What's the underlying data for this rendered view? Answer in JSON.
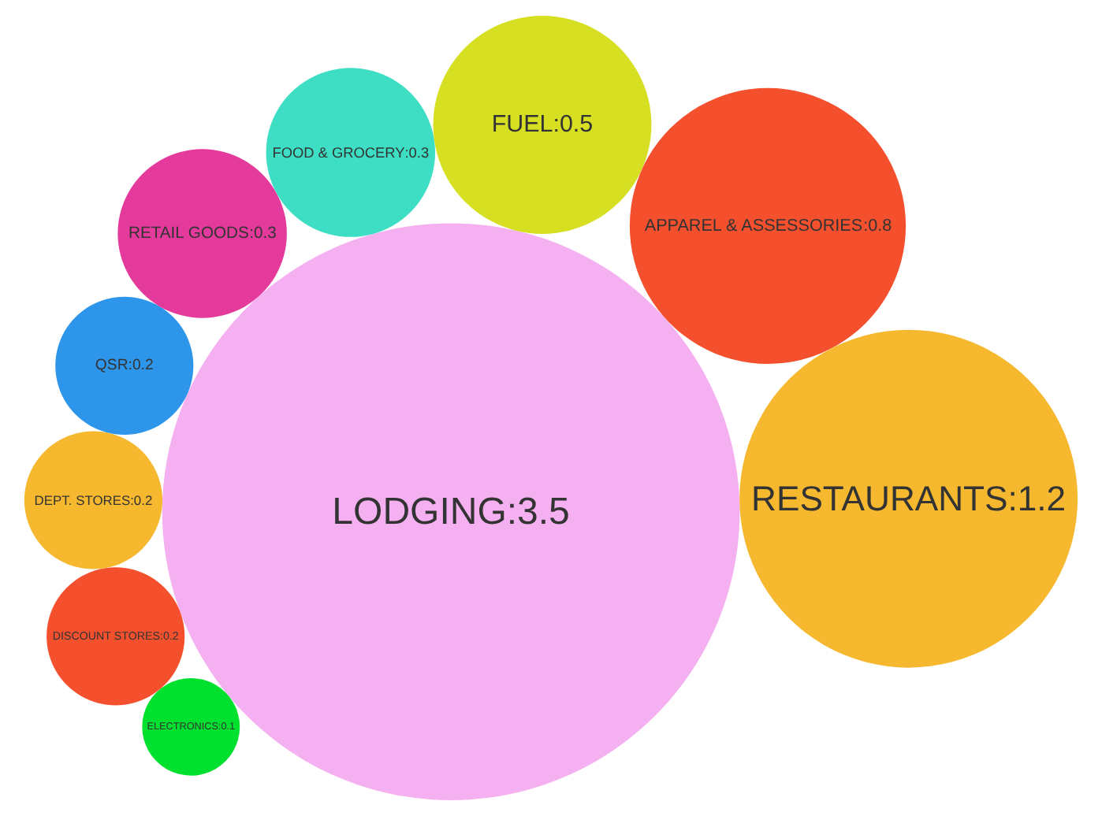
{
  "chart_data": {
    "type": "other",
    "categories": [
      "LODGING",
      "ELECTRONICS",
      "DISCOUNT STORES",
      "DEPT. STORES",
      "QSR",
      "RETAIL GOODS",
      "FOOD & GROCERY",
      "FUEL",
      "APPAREL & ASSESSORIES",
      "RESTAURANTS"
    ],
    "values": [
      3.5,
      0.1,
      0.2,
      0.2,
      0.2,
      0.3,
      0.3,
      0.5,
      0.8,
      1.2
    ],
    "value_labels": [
      ":3.5",
      ":0.1",
      ":0.2",
      ":0.2",
      ":0.2",
      ":0.3",
      ":0.3",
      ":0.5",
      ":0.8",
      ":1.2"
    ],
    "colors": [
      "#f4b0f0",
      "#00e02e",
      "#f5502e",
      "#f5b82e",
      "#2e96ea",
      "#e43a9c",
      "#3ddec4",
      "#d6df22",
      "#f5502e",
      "#f5b82e"
    ]
  }
}
